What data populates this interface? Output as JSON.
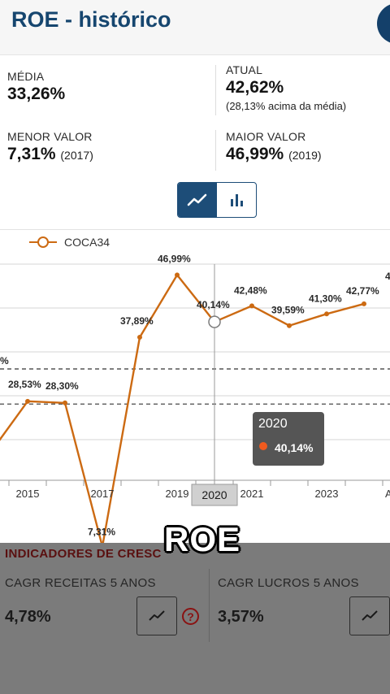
{
  "header": {
    "title": "ROE - histórico"
  },
  "stats": {
    "media": {
      "label": "MÉDIA",
      "value": "33,26%"
    },
    "atual": {
      "label": "ATUAL",
      "value": "42,62%",
      "sub": "(28,13% acima da média)"
    },
    "menor": {
      "label": "MENOR VALOR",
      "value": "7,31%",
      "note": "(2017)"
    },
    "maior": {
      "label": "MAIOR VALOR",
      "value": "46,99%",
      "note": "(2019)"
    }
  },
  "view_toggle": {
    "active": "line",
    "icons": [
      "line-chart-icon",
      "bar-chart-icon"
    ]
  },
  "chart_data": {
    "type": "line",
    "legend": "COCA34",
    "legend_position": "top-left",
    "series": [
      {
        "name": "COCA34",
        "color": "#cc6a12",
        "x": [
          2014,
          2015,
          2016,
          2017,
          2018,
          2019,
          2020,
          2021,
          2022,
          2023,
          2024
        ],
        "values": [
          21.0,
          28.53,
          28.3,
          7.31,
          37.89,
          46.99,
          40.14,
          42.48,
          39.59,
          41.3,
          42.77
        ],
        "labels": [
          "",
          "28,53%",
          "28,30%",
          "7,31%",
          "37,89%",
          "46,99%",
          "40,14%",
          "42,48%",
          "39,59%",
          "41,30%",
          "42,77%"
        ]
      }
    ],
    "x_ticks": [
      "2015",
      "2017",
      "2019",
      "2020",
      "2021",
      "2023"
    ],
    "x_partial_labels": [
      "%",
      "4",
      "A"
    ],
    "highlight": {
      "x": 2020,
      "x_label": "2020",
      "value_label": "40,14%"
    },
    "reference_lines": [
      33.26,
      28.13
    ],
    "grid": true
  },
  "tooltip": {
    "year": "2020",
    "value": "40,14%",
    "color": "#ef5a1e"
  },
  "caption": {
    "text": "ROE"
  },
  "indicators": {
    "title": "INDICADORES DE CRESC",
    "items": [
      {
        "label": "CAGR RECEITAS 5 ANOS",
        "value": "4,78%"
      },
      {
        "label": "CAGR LUCROS 5 ANOS",
        "value": "3,57%"
      }
    ],
    "help_symbol": "?"
  }
}
